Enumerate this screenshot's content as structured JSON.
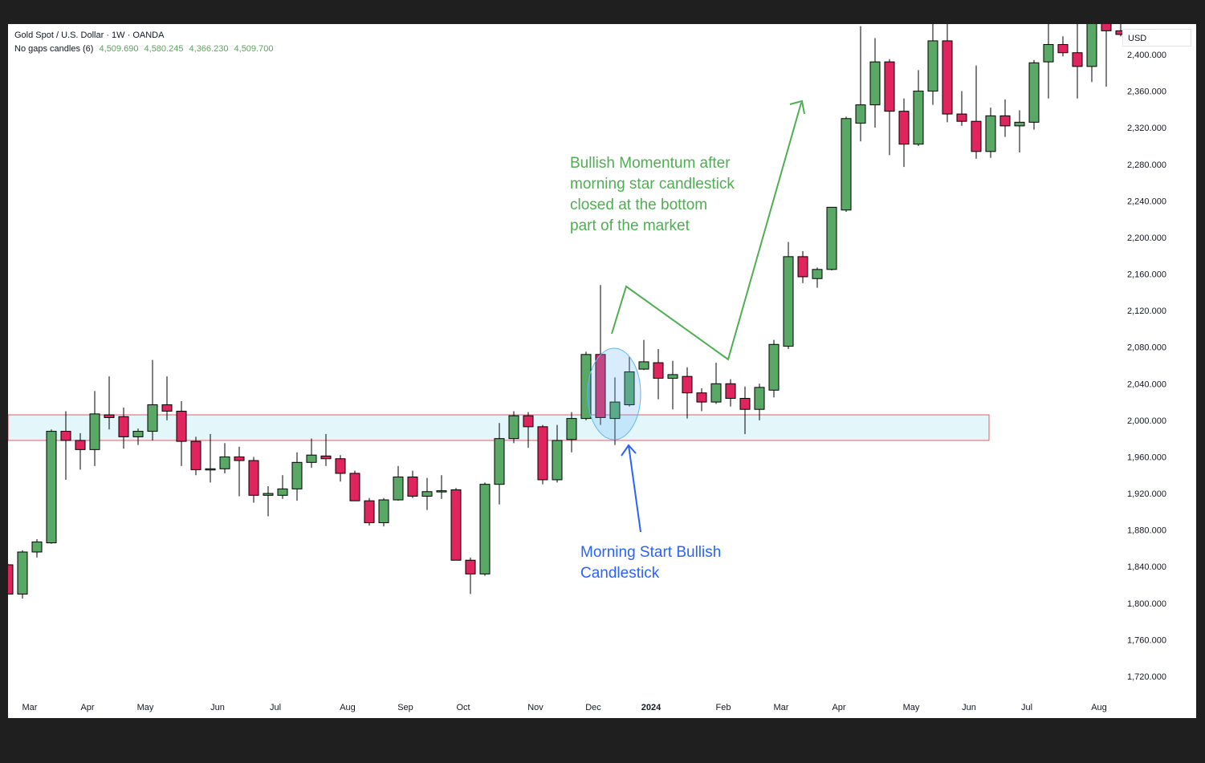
{
  "header": {
    "symbol": "Gold Spot / U.S. Dollar · 1W · OANDA",
    "indicator": "No gaps candles (6)",
    "indicator_values": [
      "4,509.690",
      "4,580.245",
      "4,366.230",
      "4,509.700"
    ]
  },
  "price_axis": {
    "unit": "USD",
    "ticks": [
      "2,400.000",
      "2,360.000",
      "2,320.000",
      "2,280.000",
      "2,240.000",
      "2,200.000",
      "2,160.000",
      "2,120.000",
      "2,080.000",
      "2,040.000",
      "2,000.000",
      "1,960.000",
      "1,920.000",
      "1,880.000",
      "1,840.000",
      "1,800.000",
      "1,760.000",
      "1,720.000"
    ]
  },
  "annotations": {
    "bullish": "Bullish Momentum after\nmorning star candlestick\nclosed at the bottom\npart of the market",
    "morning_star": "Morning Start Bullish\nCandlestick"
  },
  "colors": {
    "up": "#59a866",
    "down": "#e0245e",
    "zone_fill": "#e3f7fb",
    "zone_border": "#e35d6a",
    "arrow_green": "#4caf50",
    "arrow_blue": "#2962ff"
  },
  "chart_data": {
    "type": "candlestick",
    "ylim": [
      1700,
      2430
    ],
    "x_labels": [
      "Mar",
      "Apr",
      "May",
      "Jun",
      "Jul",
      "Aug",
      "Sep",
      "Oct",
      "Nov",
      "Dec",
      "2024",
      "Feb",
      "Mar",
      "Apr",
      "May",
      "Jun",
      "Jul",
      "Aug"
    ],
    "x_label_weeks": [
      1.5,
      5.5,
      9.5,
      14.5,
      18.5,
      23.5,
      27.5,
      31.5,
      36.5,
      40.5,
      44.5,
      49.5,
      53.5,
      57.5,
      62.5,
      66.5,
      70.5,
      75.5
    ],
    "support_zone": [
      1978,
      2006
    ],
    "candles": [
      {
        "o": 1842,
        "h": 1843,
        "l": 1810,
        "c": 1810
      },
      {
        "o": 1810,
        "h": 1858,
        "l": 1805,
        "c": 1856
      },
      {
        "o": 1856,
        "h": 1870,
        "l": 1850,
        "c": 1867
      },
      {
        "o": 1866,
        "h": 1990,
        "l": 1865,
        "c": 1988
      },
      {
        "o": 1988,
        "h": 2010,
        "l": 1935,
        "c": 1978
      },
      {
        "o": 1978,
        "h": 1986,
        "l": 1946,
        "c": 1968
      },
      {
        "o": 1968,
        "h": 2032,
        "l": 1950,
        "c": 2007
      },
      {
        "o": 2006,
        "h": 2048,
        "l": 1990,
        "c": 2003
      },
      {
        "o": 2004,
        "h": 2014,
        "l": 1969,
        "c": 1982
      },
      {
        "o": 1982,
        "h": 1991,
        "l": 1973,
        "c": 1988
      },
      {
        "o": 1988,
        "h": 2066,
        "l": 1978,
        "c": 2017
      },
      {
        "o": 2017,
        "h": 2048,
        "l": 2000,
        "c": 2010
      },
      {
        "o": 2010,
        "h": 2021,
        "l": 1950,
        "c": 1977
      },
      {
        "o": 1977,
        "h": 1982,
        "l": 1940,
        "c": 1946
      },
      {
        "o": 1946,
        "h": 1985,
        "l": 1932,
        "c": 1947
      },
      {
        "o": 1947,
        "h": 1975,
        "l": 1942,
        "c": 1960
      },
      {
        "o": 1960,
        "h": 1971,
        "l": 1917,
        "c": 1956
      },
      {
        "o": 1956,
        "h": 1960,
        "l": 1910,
        "c": 1918
      },
      {
        "o": 1918,
        "h": 1928,
        "l": 1895,
        "c": 1920
      },
      {
        "o": 1918,
        "h": 1940,
        "l": 1914,
        "c": 1925
      },
      {
        "o": 1925,
        "h": 1965,
        "l": 1912,
        "c": 1954
      },
      {
        "o": 1954,
        "h": 1980,
        "l": 1948,
        "c": 1962
      },
      {
        "o": 1961,
        "h": 1985,
        "l": 1950,
        "c": 1958
      },
      {
        "o": 1958,
        "h": 1962,
        "l": 1933,
        "c": 1942
      },
      {
        "o": 1942,
        "h": 1945,
        "l": 1912,
        "c": 1912
      },
      {
        "o": 1912,
        "h": 1915,
        "l": 1885,
        "c": 1888
      },
      {
        "o": 1888,
        "h": 1915,
        "l": 1884,
        "c": 1913
      },
      {
        "o": 1913,
        "h": 1950,
        "l": 1912,
        "c": 1938
      },
      {
        "o": 1938,
        "h": 1945,
        "l": 1915,
        "c": 1917
      },
      {
        "o": 1917,
        "h": 1937,
        "l": 1902,
        "c": 1922
      },
      {
        "o": 1922,
        "h": 1940,
        "l": 1914,
        "c": 1923
      },
      {
        "o": 1924,
        "h": 1926,
        "l": 1847,
        "c": 1847
      },
      {
        "o": 1847,
        "h": 1850,
        "l": 1810,
        "c": 1832
      },
      {
        "o": 1832,
        "h": 1932,
        "l": 1830,
        "c": 1930
      },
      {
        "o": 1930,
        "h": 1997,
        "l": 1908,
        "c": 1980
      },
      {
        "o": 1980,
        "h": 2010,
        "l": 1975,
        "c": 2005
      },
      {
        "o": 2005,
        "h": 2009,
        "l": 1970,
        "c": 1993
      },
      {
        "o": 1993,
        "h": 1995,
        "l": 1930,
        "c": 1935
      },
      {
        "o": 1935,
        "h": 1995,
        "l": 1932,
        "c": 1978
      },
      {
        "o": 1979,
        "h": 2009,
        "l": 1965,
        "c": 2002
      },
      {
        "o": 2002,
        "h": 2075,
        "l": 2000,
        "c": 2072
      },
      {
        "o": 2072,
        "h": 2148,
        "l": 1995,
        "c": 2003
      },
      {
        "o": 2002,
        "h": 2047,
        "l": 1973,
        "c": 2020
      },
      {
        "o": 2017,
        "h": 2070,
        "l": 2015,
        "c": 2053
      },
      {
        "o": 2056,
        "h": 2088,
        "l": 2055,
        "c": 2064
      },
      {
        "o": 2063,
        "h": 2078,
        "l": 2023,
        "c": 2046
      },
      {
        "o": 2046,
        "h": 2065,
        "l": 2012,
        "c": 2050
      },
      {
        "o": 2048,
        "h": 2058,
        "l": 2002,
        "c": 2030
      },
      {
        "o": 2030,
        "h": 2035,
        "l": 2010,
        "c": 2020
      },
      {
        "o": 2020,
        "h": 2063,
        "l": 2018,
        "c": 2040
      },
      {
        "o": 2040,
        "h": 2045,
        "l": 2015,
        "c": 2024
      },
      {
        "o": 2024,
        "h": 2037,
        "l": 1985,
        "c": 2012
      },
      {
        "o": 2012,
        "h": 2040,
        "l": 2000,
        "c": 2036
      },
      {
        "o": 2033,
        "h": 2088,
        "l": 2025,
        "c": 2083
      },
      {
        "o": 2081,
        "h": 2195,
        "l": 2078,
        "c": 2179
      },
      {
        "o": 2179,
        "h": 2185,
        "l": 2150,
        "c": 2157
      },
      {
        "o": 2155,
        "h": 2167,
        "l": 2145,
        "c": 2165
      },
      {
        "o": 2165,
        "h": 2233,
        "l": 2164,
        "c": 2233
      },
      {
        "o": 2230,
        "h": 2332,
        "l": 2228,
        "c": 2330
      },
      {
        "o": 2325,
        "h": 2431,
        "l": 2305,
        "c": 2345
      },
      {
        "o": 2345,
        "h": 2418,
        "l": 2320,
        "c": 2392
      },
      {
        "o": 2392,
        "h": 2395,
        "l": 2290,
        "c": 2338
      },
      {
        "o": 2338,
        "h": 2352,
        "l": 2277,
        "c": 2302
      },
      {
        "o": 2302,
        "h": 2383,
        "l": 2300,
        "c": 2360
      },
      {
        "o": 2360,
        "h": 2450,
        "l": 2345,
        "c": 2415
      },
      {
        "o": 2415,
        "h": 2455,
        "l": 2326,
        "c": 2335
      },
      {
        "o": 2335,
        "h": 2360,
        "l": 2322,
        "c": 2327
      },
      {
        "o": 2327,
        "h": 2388,
        "l": 2286,
        "c": 2294
      },
      {
        "o": 2294,
        "h": 2342,
        "l": 2287,
        "c": 2333
      },
      {
        "o": 2333,
        "h": 2351,
        "l": 2310,
        "c": 2322
      },
      {
        "o": 2322,
        "h": 2339,
        "l": 2293,
        "c": 2326
      },
      {
        "o": 2326,
        "h": 2394,
        "l": 2318,
        "c": 2391
      },
      {
        "o": 2392,
        "h": 2440,
        "l": 2352,
        "c": 2411
      },
      {
        "o": 2411,
        "h": 2420,
        "l": 2398,
        "c": 2402
      },
      {
        "o": 2402,
        "h": 2445,
        "l": 2352,
        "c": 2387
      },
      {
        "o": 2387,
        "h": 2484,
        "l": 2370,
        "c": 2437
      },
      {
        "o": 2436,
        "h": 2450,
        "l": 2365,
        "c": 2426
      },
      {
        "o": 2426,
        "h": 2450,
        "l": 2420,
        "c": 2422
      }
    ]
  }
}
